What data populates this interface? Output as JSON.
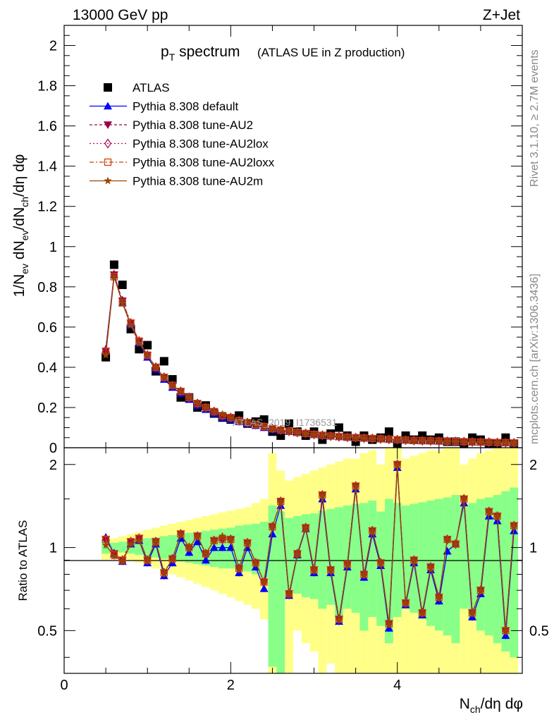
{
  "header": {
    "energy": "13000 GeV pp",
    "process": "Z+Jet"
  },
  "side_labels": {
    "rivet": "Rivet 3.1.10, ≥ 2.7M events",
    "mcplots": "mcplots.cern.ch [arXiv:1306.3436]"
  },
  "watermark": "ATLAS_2019_I1736531",
  "chart_data": [
    {
      "type": "line",
      "title_main": "p",
      "title_sub": "T",
      "title_tail": " spectrum",
      "title_paren": "(ATLAS UE in Z production)",
      "xlabel": "N_ch/dη dφ",
      "ylabel": "1/N_ev dN_ev/dN_ch/dη dφ",
      "xlim": [
        0,
        5.5
      ],
      "ylim": [
        0,
        2.1
      ],
      "yticks": [
        "0",
        "0.2",
        "0.4",
        "0.6",
        "0.8",
        "1",
        "1.2",
        "1.4",
        "1.6",
        "1.8",
        "2"
      ],
      "x": [
        0.5,
        0.6,
        0.7,
        0.8,
        0.9,
        1.0,
        1.1,
        1.2,
        1.3,
        1.4,
        1.5,
        1.6,
        1.7,
        1.8,
        1.9,
        2.0,
        2.1,
        2.2,
        2.3,
        2.4,
        2.5,
        2.6,
        2.7,
        2.8,
        2.9,
        3.0,
        3.1,
        3.2,
        3.3,
        3.4,
        3.5,
        3.6,
        3.7,
        3.8,
        3.9,
        4.0,
        4.1,
        4.2,
        4.3,
        4.4,
        4.5,
        4.6,
        4.7,
        4.8,
        4.9,
        5.0,
        5.1,
        5.2,
        5.3,
        5.4
      ],
      "legend": [
        {
          "name": "ATLAS",
          "color": "#000000",
          "marker": "square-filled",
          "dash": "none"
        },
        {
          "name": "Pythia 8.308 default",
          "color": "#0000ff",
          "marker": "triangle-up",
          "dash": "solid"
        },
        {
          "name": "Pythia 8.308 tune-AU2",
          "color": "#990044",
          "marker": "triangle-down",
          "dash": "4,3"
        },
        {
          "name": "Pythia 8.308 tune-AU2lox",
          "color": "#aa1155",
          "marker": "diamond-open",
          "dash": "2,3"
        },
        {
          "name": "Pythia 8.308 tune-AU2loxx",
          "color": "#cc4400",
          "marker": "square-open",
          "dash": "6,3,2,3"
        },
        {
          "name": "Pythia 8.308 tune-AU2m",
          "color": "#994400",
          "marker": "star",
          "dash": "solid"
        }
      ],
      "series": [
        {
          "name": "ATLAS",
          "values": [
            0.45,
            0.91,
            0.81,
            0.59,
            0.49,
            0.51,
            0.38,
            0.43,
            0.34,
            0.25,
            0.25,
            0.2,
            0.21,
            0.17,
            0.15,
            0.14,
            0.16,
            0.12,
            0.13,
            0.14,
            0.08,
            0.06,
            0.12,
            0.08,
            0.06,
            0.08,
            0.04,
            0.07,
            0.1,
            0.06,
            0.03,
            0.06,
            0.04,
            0.05,
            0.08,
            0.02,
            0.06,
            0.04,
            0.06,
            0.04,
            0.05,
            0.03,
            0.03,
            0.02,
            0.05,
            0.04,
            0.02,
            0.02,
            0.05,
            0.02
          ]
        },
        {
          "name": "Pythia 8.308 default",
          "values": [
            0.49,
            0.86,
            0.72,
            0.61,
            0.52,
            0.45,
            0.39,
            0.34,
            0.3,
            0.27,
            0.24,
            0.21,
            0.19,
            0.17,
            0.15,
            0.14,
            0.13,
            0.12,
            0.11,
            0.1,
            0.09,
            0.085,
            0.08,
            0.075,
            0.07,
            0.065,
            0.06,
            0.057,
            0.054,
            0.051,
            0.049,
            0.047,
            0.045,
            0.043,
            0.041,
            0.039,
            0.037,
            0.035,
            0.034,
            0.033,
            0.032,
            0.031,
            0.03,
            0.029,
            0.028,
            0.027,
            0.026,
            0.025,
            0.024,
            0.023
          ]
        },
        {
          "name": "Pythia 8.308 tune-AU2",
          "values": [
            0.48,
            0.86,
            0.73,
            0.62,
            0.53,
            0.46,
            0.4,
            0.35,
            0.31,
            0.28,
            0.25,
            0.22,
            0.2,
            0.18,
            0.16,
            0.15,
            0.135,
            0.125,
            0.115,
            0.105,
            0.095,
            0.088,
            0.082,
            0.076,
            0.071,
            0.066,
            0.062,
            0.058,
            0.055,
            0.052,
            0.05,
            0.048,
            0.046,
            0.044,
            0.042,
            0.04,
            0.038,
            0.036,
            0.035,
            0.034,
            0.033,
            0.032,
            0.031,
            0.03,
            0.029,
            0.028,
            0.027,
            0.026,
            0.025,
            0.024
          ]
        },
        {
          "name": "Pythia 8.308 tune-AU2lox",
          "values": [
            0.48,
            0.86,
            0.73,
            0.62,
            0.53,
            0.46,
            0.4,
            0.35,
            0.31,
            0.28,
            0.25,
            0.22,
            0.2,
            0.18,
            0.16,
            0.15,
            0.135,
            0.125,
            0.115,
            0.105,
            0.095,
            0.088,
            0.082,
            0.076,
            0.071,
            0.066,
            0.062,
            0.058,
            0.055,
            0.052,
            0.05,
            0.048,
            0.046,
            0.044,
            0.042,
            0.04,
            0.038,
            0.036,
            0.035,
            0.034,
            0.033,
            0.032,
            0.031,
            0.03,
            0.029,
            0.028,
            0.027,
            0.026,
            0.025,
            0.024
          ]
        },
        {
          "name": "Pythia 8.308 tune-AU2loxx",
          "values": [
            0.48,
            0.85,
            0.72,
            0.62,
            0.53,
            0.46,
            0.4,
            0.35,
            0.31,
            0.28,
            0.25,
            0.22,
            0.2,
            0.18,
            0.16,
            0.15,
            0.135,
            0.125,
            0.115,
            0.105,
            0.095,
            0.088,
            0.082,
            0.076,
            0.071,
            0.066,
            0.062,
            0.058,
            0.055,
            0.052,
            0.05,
            0.048,
            0.046,
            0.044,
            0.042,
            0.04,
            0.038,
            0.036,
            0.035,
            0.034,
            0.033,
            0.032,
            0.031,
            0.03,
            0.029,
            0.028,
            0.027,
            0.026,
            0.025,
            0.024
          ]
        },
        {
          "name": "Pythia 8.308 tune-AU2m",
          "values": [
            0.46,
            0.85,
            0.72,
            0.61,
            0.52,
            0.46,
            0.4,
            0.35,
            0.31,
            0.28,
            0.25,
            0.22,
            0.2,
            0.18,
            0.165,
            0.15,
            0.135,
            0.125,
            0.115,
            0.105,
            0.095,
            0.088,
            0.082,
            0.076,
            0.071,
            0.066,
            0.062,
            0.058,
            0.055,
            0.052,
            0.05,
            0.048,
            0.046,
            0.044,
            0.042,
            0.04,
            0.038,
            0.036,
            0.035,
            0.034,
            0.033,
            0.032,
            0.031,
            0.03,
            0.029,
            0.028,
            0.027,
            0.026,
            0.025,
            0.024
          ]
        }
      ]
    },
    {
      "type": "line",
      "ylabel": "Ratio to ATLAS",
      "xlabel": "N_ch/dη dφ",
      "xlim": [
        0,
        5.5
      ],
      "ylim": [
        0.35,
        2.3
      ],
      "yticks": [
        "0.5",
        "1",
        "2"
      ],
      "xticks": [
        "0",
        "2",
        "4"
      ],
      "reference_line": 1,
      "x": [
        0.5,
        0.6,
        0.7,
        0.8,
        0.9,
        1.0,
        1.1,
        1.2,
        1.3,
        1.4,
        1.5,
        1.6,
        1.7,
        1.8,
        1.9,
        2.0,
        2.1,
        2.2,
        2.3,
        2.4,
        2.5,
        2.6,
        2.7,
        2.8,
        2.9,
        3.0,
        3.1,
        3.2,
        3.3,
        3.4,
        3.5,
        3.6,
        3.7,
        3.8,
        3.9,
        4.0,
        4.1,
        4.2,
        4.3,
        4.4,
        4.5,
        4.6,
        4.7,
        4.8,
        4.9,
        5.0,
        5.1,
        5.2,
        5.3,
        5.4
      ],
      "band_stat": [
        [
          0.95,
          1.06
        ],
        [
          0.97,
          1.04
        ],
        [
          0.96,
          1.05
        ],
        [
          0.95,
          1.06
        ],
        [
          0.94,
          1.07
        ],
        [
          0.93,
          1.08
        ],
        [
          0.92,
          1.09
        ],
        [
          0.91,
          1.1
        ],
        [
          0.9,
          1.11
        ],
        [
          0.89,
          1.12
        ],
        [
          0.88,
          1.13
        ],
        [
          0.87,
          1.14
        ],
        [
          0.86,
          1.15
        ],
        [
          0.85,
          1.16
        ],
        [
          0.84,
          1.17
        ],
        [
          0.84,
          1.18
        ],
        [
          0.83,
          1.2
        ],
        [
          0.82,
          1.21
        ],
        [
          0.8,
          1.22
        ],
        [
          0.78,
          1.24
        ],
        [
          0.37,
          1.42
        ],
        [
          0.33,
          1.35
        ],
        [
          0.7,
          1.28
        ],
        [
          0.68,
          1.3
        ],
        [
          0.66,
          1.32
        ],
        [
          0.65,
          1.33
        ],
        [
          0.6,
          1.36
        ],
        [
          0.62,
          1.38
        ],
        [
          0.55,
          1.4
        ],
        [
          0.6,
          1.42
        ],
        [
          0.58,
          1.44
        ],
        [
          0.5,
          1.45
        ],
        [
          0.56,
          1.48
        ],
        [
          0.52,
          1.35
        ],
        [
          0.45,
          1.5
        ],
        [
          0.56,
          1.45
        ],
        [
          0.6,
          1.42
        ],
        [
          0.58,
          1.44
        ],
        [
          0.55,
          1.46
        ],
        [
          0.52,
          1.48
        ],
        [
          0.5,
          1.5
        ],
        [
          0.48,
          1.52
        ],
        [
          0.45,
          1.55
        ],
        [
          0.6,
          1.4
        ],
        [
          0.55,
          1.45
        ],
        [
          0.5,
          1.5
        ],
        [
          0.48,
          1.52
        ],
        [
          0.45,
          1.55
        ],
        [
          0.42,
          1.6
        ],
        [
          0.4,
          1.65
        ]
      ],
      "band_syst": [
        [
          0.9,
          1.11
        ],
        [
          0.92,
          1.08
        ],
        [
          0.92,
          1.1
        ],
        [
          0.9,
          1.12
        ],
        [
          0.88,
          1.14
        ],
        [
          0.86,
          1.16
        ],
        [
          0.84,
          1.18
        ],
        [
          0.82,
          1.2
        ],
        [
          0.8,
          1.22
        ],
        [
          0.78,
          1.24
        ],
        [
          0.76,
          1.26
        ],
        [
          0.74,
          1.28
        ],
        [
          0.72,
          1.3
        ],
        [
          0.7,
          1.32
        ],
        [
          0.68,
          1.34
        ],
        [
          0.66,
          1.36
        ],
        [
          0.64,
          1.38
        ],
        [
          0.62,
          1.4
        ],
        [
          0.6,
          1.45
        ],
        [
          0.55,
          1.5
        ],
        [
          0.35,
          2.2
        ],
        [
          0.35,
          1.9
        ],
        [
          0.35,
          1.75
        ],
        [
          0.5,
          1.8
        ],
        [
          0.45,
          1.85
        ],
        [
          0.42,
          1.9
        ],
        [
          0.35,
          1.95
        ],
        [
          0.38,
          2.0
        ],
        [
          0.35,
          2.05
        ],
        [
          0.35,
          2.1
        ],
        [
          0.35,
          2.1
        ],
        [
          0.35,
          2.2
        ],
        [
          0.35,
          2.25
        ],
        [
          0.35,
          2.0
        ],
        [
          0.35,
          2.3
        ],
        [
          0.35,
          2.3
        ],
        [
          0.35,
          2.1
        ],
        [
          0.35,
          2.15
        ],
        [
          0.35,
          2.2
        ],
        [
          0.35,
          2.25
        ],
        [
          0.35,
          2.25
        ],
        [
          0.35,
          2.3
        ],
        [
          0.35,
          2.3
        ],
        [
          0.35,
          2.0
        ],
        [
          0.35,
          2.1
        ],
        [
          0.35,
          2.2
        ],
        [
          0.35,
          2.25
        ],
        [
          0.35,
          2.3
        ],
        [
          0.35,
          2.3
        ],
        [
          0.35,
          2.3
        ]
      ],
      "series": [
        {
          "name": "Pythia 8.308 default",
          "values": [
            1.09,
            0.95,
            0.89,
            1.03,
            1.06,
            0.88,
            1.03,
            0.79,
            0.88,
            1.08,
            0.96,
            1.05,
            0.9,
            1.0,
            1.0,
            1.0,
            0.81,
            1.0,
            0.85,
            0.71,
            1.12,
            1.42,
            0.67,
            0.94,
            1.17,
            0.81,
            1.5,
            0.81,
            0.54,
            0.85,
            1.63,
            0.78,
            1.12,
            0.86,
            0.51,
            1.95,
            0.62,
            0.88,
            0.57,
            0.83,
            0.64,
            0.97,
            1.03,
            1.45,
            0.56,
            0.68,
            1.3,
            1.25,
            0.48,
            1.15
          ]
        },
        {
          "name": "Pythia 8.308 tune-AU2",
          "values": [
            1.07,
            0.95,
            0.9,
            1.05,
            1.08,
            0.9,
            1.05,
            0.81,
            0.91,
            1.12,
            1.0,
            1.1,
            0.95,
            1.06,
            1.07,
            1.07,
            0.84,
            1.04,
            0.88,
            0.75,
            1.19,
            1.47,
            0.68,
            0.95,
            1.18,
            0.83,
            1.55,
            0.83,
            0.55,
            0.87,
            1.67,
            0.8,
            1.15,
            0.88,
            0.53,
            2.0,
            0.63,
            0.9,
            0.58,
            0.85,
            0.66,
            1.07,
            1.03,
            1.5,
            0.58,
            0.7,
            1.35,
            1.3,
            0.5,
            1.2
          ]
        },
        {
          "name": "Pythia 8.308 tune-AU2lox",
          "values": [
            1.07,
            0.95,
            0.9,
            1.05,
            1.08,
            0.9,
            1.05,
            0.81,
            0.91,
            1.12,
            1.0,
            1.1,
            0.95,
            1.06,
            1.07,
            1.07,
            0.84,
            1.04,
            0.88,
            0.75,
            1.19,
            1.47,
            0.68,
            0.95,
            1.18,
            0.83,
            1.55,
            0.83,
            0.55,
            0.87,
            1.67,
            0.8,
            1.15,
            0.88,
            0.53,
            2.0,
            0.63,
            0.9,
            0.58,
            0.85,
            0.66,
            1.07,
            1.03,
            1.5,
            0.58,
            0.7,
            1.35,
            1.3,
            0.5,
            1.2
          ]
        },
        {
          "name": "Pythia 8.308 tune-AU2loxx",
          "values": [
            1.07,
            0.94,
            0.9,
            1.05,
            1.08,
            0.9,
            1.05,
            0.81,
            0.91,
            1.12,
            1.0,
            1.1,
            0.95,
            1.06,
            1.07,
            1.07,
            0.84,
            1.04,
            0.88,
            0.75,
            1.19,
            1.47,
            0.68,
            0.95,
            1.18,
            0.83,
            1.55,
            0.83,
            0.55,
            0.87,
            1.67,
            0.8,
            1.15,
            0.88,
            0.53,
            2.0,
            0.63,
            0.9,
            0.58,
            0.85,
            0.66,
            1.07,
            1.03,
            1.5,
            0.58,
            0.7,
            1.35,
            1.3,
            0.5,
            1.2
          ]
        },
        {
          "name": "Pythia 8.308 tune-AU2m",
          "values": [
            1.02,
            0.93,
            0.89,
            1.03,
            1.06,
            0.9,
            1.05,
            0.81,
            0.91,
            1.12,
            1.0,
            1.1,
            0.95,
            1.06,
            1.1,
            1.07,
            0.84,
            1.04,
            0.88,
            0.75,
            1.19,
            1.47,
            0.68,
            0.95,
            1.18,
            0.83,
            1.55,
            0.83,
            0.55,
            0.87,
            1.67,
            0.8,
            1.15,
            0.88,
            0.53,
            2.0,
            0.63,
            0.9,
            0.58,
            0.85,
            0.66,
            1.07,
            1.03,
            1.5,
            0.58,
            0.7,
            1.35,
            1.3,
            0.5,
            1.2
          ]
        }
      ]
    }
  ]
}
